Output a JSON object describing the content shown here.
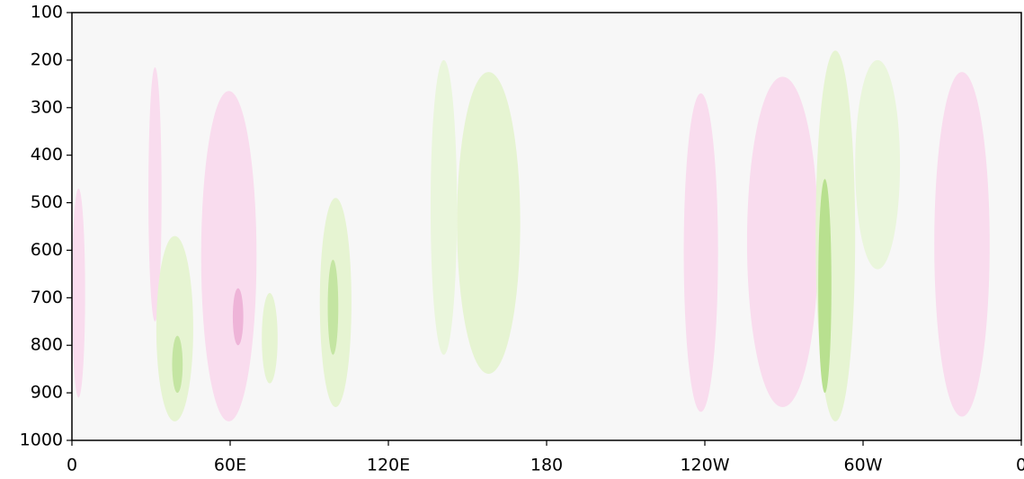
{
  "chart_data": {
    "type": "contour",
    "xlim": [
      0,
      360
    ],
    "xticks": [
      0,
      {
        "value": 60,
        "label": "60E"
      },
      {
        "value": 120,
        "label": "120E"
      },
      180,
      {
        "value": 240,
        "label": "120W"
      },
      {
        "value": 300,
        "label": "60W"
      },
      {
        "value": 360,
        "label": "0"
      }
    ],
    "ylim": [
      1000,
      100
    ],
    "yticks": [
      100,
      200,
      300,
      400,
      500,
      600,
      700,
      800,
      900,
      1000
    ],
    "background": "#f7f7f7",
    "blobs": [
      {
        "lon_min": 0,
        "lon_max": 5,
        "p_top": 470,
        "p_bottom": 910,
        "color": "#f9dcee"
      },
      {
        "lon_min": 29,
        "lon_max": 34,
        "p_top": 215,
        "p_bottom": 750,
        "color": "#f9dcee"
      },
      {
        "lon_min": 49,
        "lon_max": 70,
        "p_top": 265,
        "p_bottom": 960,
        "color": "#f9dcee"
      },
      {
        "lon_min": 61,
        "lon_max": 65,
        "p_top": 680,
        "p_bottom": 800,
        "color": "#eeb4d8"
      },
      {
        "lon_min": 232,
        "lon_max": 245,
        "p_top": 270,
        "p_bottom": 940,
        "color": "#f9dcee"
      },
      {
        "lon_min": 256,
        "lon_max": 283,
        "p_top": 235,
        "p_bottom": 930,
        "color": "#f9dcee"
      },
      {
        "lon_min": 327,
        "lon_max": 348,
        "p_top": 225,
        "p_bottom": 950,
        "color": "#f9dcee"
      },
      {
        "lon_min": 32,
        "lon_max": 46,
        "p_top": 570,
        "p_bottom": 960,
        "color": "#e6f4d2"
      },
      {
        "lon_min": 38,
        "lon_max": 42,
        "p_top": 780,
        "p_bottom": 900,
        "color": "#c4e5a2"
      },
      {
        "lon_min": 72,
        "lon_max": 78,
        "p_top": 690,
        "p_bottom": 880,
        "color": "#e6f4d2"
      },
      {
        "lon_min": 94,
        "lon_max": 106,
        "p_top": 490,
        "p_bottom": 930,
        "color": "#e6f4d2"
      },
      {
        "lon_min": 97,
        "lon_max": 101,
        "p_top": 620,
        "p_bottom": 820,
        "color": "#c4e5a2"
      },
      {
        "lon_min": 136,
        "lon_max": 146,
        "p_top": 200,
        "p_bottom": 820,
        "color": "#eaf6dc"
      },
      {
        "lon_min": 146,
        "lon_max": 170,
        "p_top": 225,
        "p_bottom": 860,
        "color": "#e6f4d2"
      },
      {
        "lon_min": 282,
        "lon_max": 297,
        "p_top": 180,
        "p_bottom": 960,
        "color": "#e6f4d2"
      },
      {
        "lon_min": 283,
        "lon_max": 288,
        "p_top": 450,
        "p_bottom": 900,
        "color": "#b8e08f"
      },
      {
        "lon_min": 297,
        "lon_max": 314,
        "p_top": 200,
        "p_bottom": 640,
        "color": "#eaf6dc"
      }
    ]
  }
}
